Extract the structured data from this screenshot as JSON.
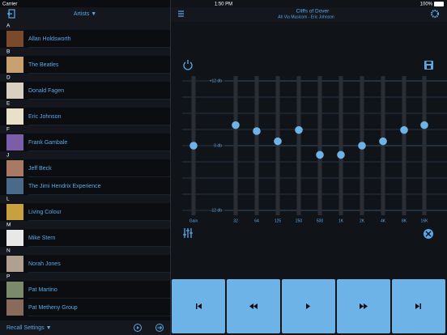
{
  "status_bar": {
    "carrier": "Carrier",
    "time": "1:50 PM",
    "battery": "100%"
  },
  "library": {
    "header": "Artists ▼",
    "sections": [
      {
        "letter": "A",
        "artists": [
          "Allan Holdsworth"
        ]
      },
      {
        "letter": "B",
        "artists": [
          "The Beatles"
        ]
      },
      {
        "letter": "D",
        "artists": [
          "Donald Fagen"
        ]
      },
      {
        "letter": "E",
        "artists": [
          "Eric Johnson"
        ]
      },
      {
        "letter": "F",
        "artists": [
          "Frank Gambale"
        ]
      },
      {
        "letter": "J",
        "artists": [
          "Jeff Beck",
          "The Jimi Hendrix Experience"
        ]
      },
      {
        "letter": "L",
        "artists": [
          "Living Colour"
        ]
      },
      {
        "letter": "M",
        "artists": [
          "Mike Stern"
        ]
      },
      {
        "letter": "N",
        "artists": [
          "Norah Jones"
        ]
      },
      {
        "letter": "P",
        "artists": [
          "Pat Martino",
          "Pat Metheny Group"
        ]
      }
    ],
    "footer": "Recall Settings ▼"
  },
  "now_playing": {
    "title": "Cliffs of Dover",
    "subtitle": "Ah Via Musicom - Eric Johnson"
  },
  "equalizer": {
    "ylim": [
      -12,
      12
    ],
    "ticks": [
      {
        "value": 12,
        "label": "+12 db"
      },
      {
        "value": 0,
        "label": "0 db"
      },
      {
        "value": -12,
        "label": "-12 db"
      }
    ],
    "bands": [
      {
        "label": "Gain",
        "value": 0
      },
      {
        "label": "32",
        "value": 3.8
      },
      {
        "label": "64",
        "value": 2.7
      },
      {
        "label": "125",
        "value": 0.8
      },
      {
        "label": "250",
        "value": 2.9
      },
      {
        "label": "500",
        "value": -1.7
      },
      {
        "label": "1K",
        "value": -1.7
      },
      {
        "label": "2K",
        "value": 0
      },
      {
        "label": "4K",
        "value": 0.8
      },
      {
        "label": "8K",
        "value": 2.9
      },
      {
        "label": "16K",
        "value": 3.8
      }
    ]
  }
}
